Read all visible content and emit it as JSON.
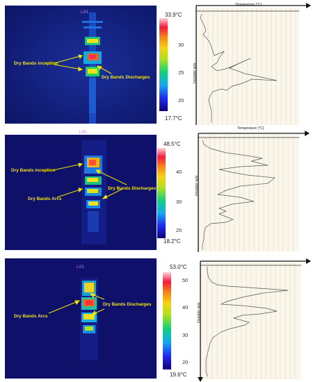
{
  "panels": [
    {
      "roi_label": "Li01",
      "scale_max": "33.9°C",
      "scale_min": "17.7°C",
      "ticks": [
        "30",
        "25",
        "20"
      ],
      "annotations": [
        "Dry Bands inception",
        "Dry Bands Discharges"
      ],
      "x_label": "Temperature (°C)",
      "y_label": "Insulator axis"
    },
    {
      "roi_label": "Li01",
      "scale_max": "48.5°C",
      "scale_min": "18.2°C",
      "ticks": [
        "40",
        "30",
        "20"
      ],
      "annotations": [
        "Dry Bands inception",
        "Dry Bands Discharges",
        "Dry Bands Arcs"
      ],
      "x_label": "Temperature (°C)",
      "y_label": "Insulator axis"
    },
    {
      "roi_label": "Li01",
      "scale_max": "53.0°C",
      "scale_min": "19.6°C",
      "ticks": [
        "50",
        "40",
        "30",
        "20"
      ],
      "annotations": [
        "Dry Bands Discharges",
        "Dry Bands Arcs"
      ],
      "x_label": "",
      "y_label": "Insulator axis"
    }
  ]
}
